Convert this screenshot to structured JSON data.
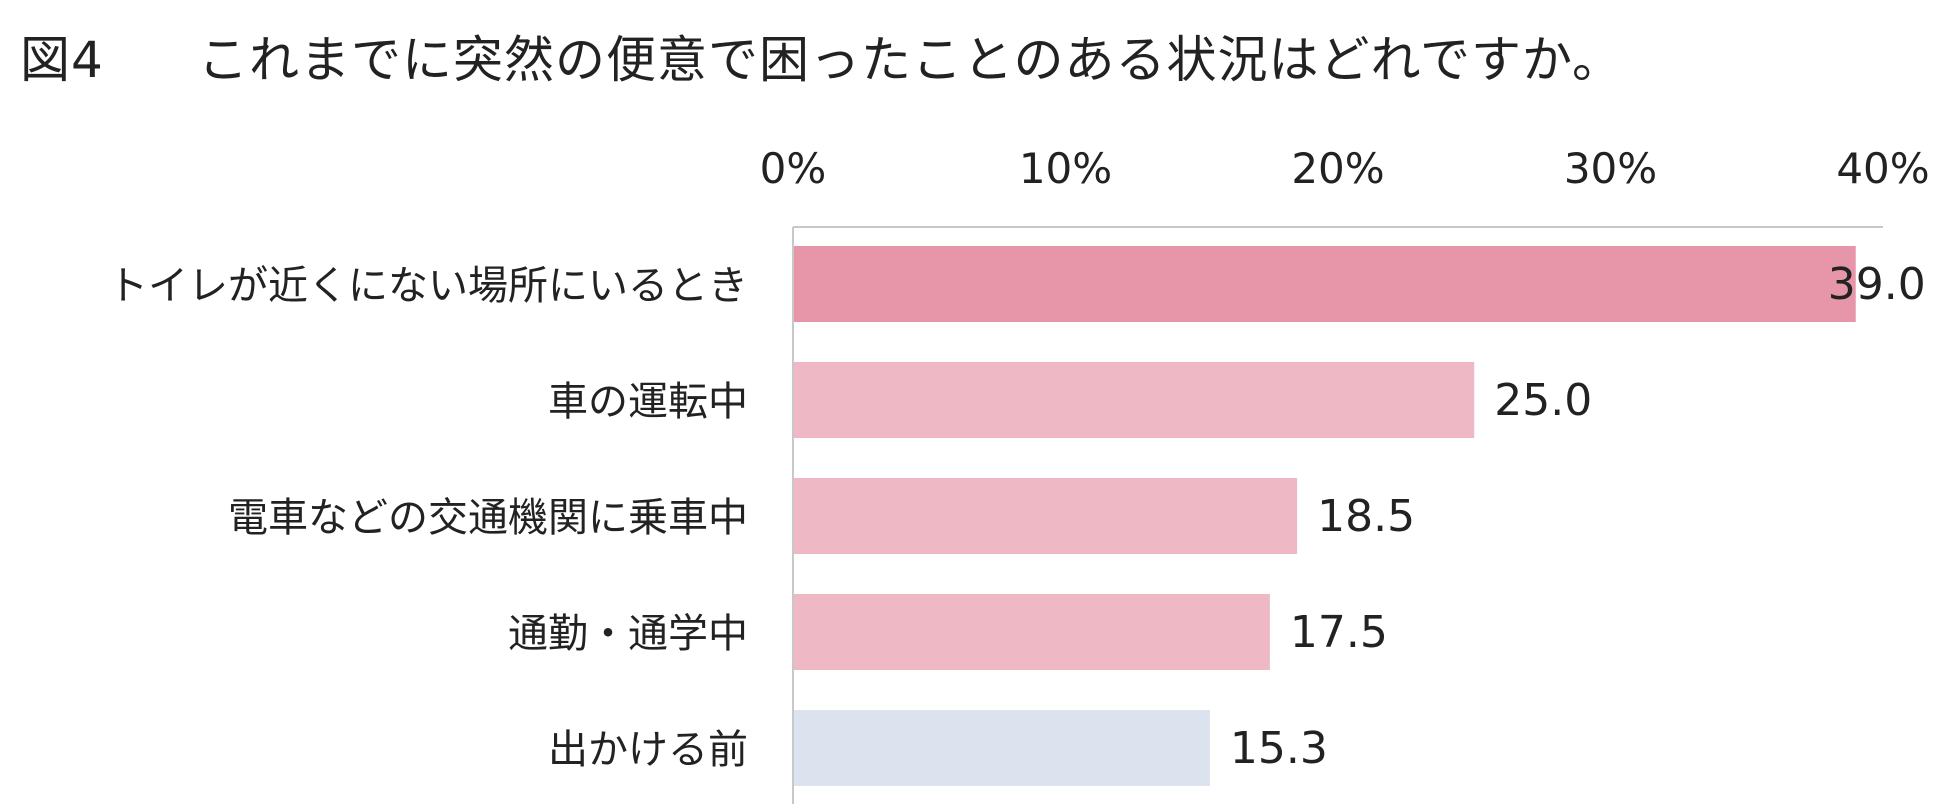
{
  "title": {
    "figure_number": "図4",
    "text": "これまでに突然の便意で困ったことのある状況はどれですか。"
  },
  "colors": {
    "highlight": "#e696a8",
    "standard": "#eeb8c5",
    "muted": "#dce3ee",
    "axis": "#c8c8c8",
    "text": "#222222"
  },
  "chart_data": {
    "type": "bar",
    "orientation": "horizontal",
    "categories": [
      "トイレが近くにない場所にいるとき",
      "車の運転中",
      "電車などの交通機関に乗車中",
      "通勤・通学中",
      "出かける前"
    ],
    "values": [
      39.0,
      25.0,
      18.5,
      17.5,
      15.3
    ],
    "value_labels": [
      "39.0",
      "25.0",
      "18.5",
      "17.5",
      "15.3"
    ],
    "bar_colors": [
      "#e696a8",
      "#eeb8c5",
      "#eeb8c5",
      "#eeb8c5",
      "#dce3ee"
    ],
    "xlim": [
      0,
      40
    ],
    "xticks": [
      0,
      10,
      20,
      30,
      40
    ],
    "xtick_labels": [
      "0%",
      "10%",
      "20%",
      "30%",
      "40%"
    ],
    "x_axis_position": "top",
    "grid": false,
    "legend": "none"
  }
}
